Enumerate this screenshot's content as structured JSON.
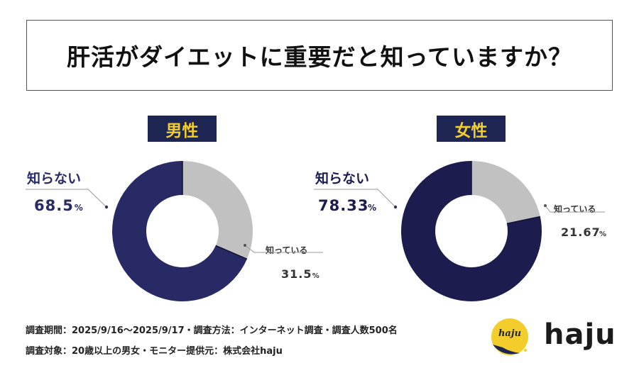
{
  "title": "肝活がダイエットに重要だと知っていますか？",
  "chart_data": [
    {
      "type": "pie",
      "title": "男性",
      "categories": [
        "知らない",
        "知っている"
      ],
      "values": [
        68.5,
        31.5
      ],
      "unit": "%",
      "colors": [
        "#272a64",
        "#c1c1c1"
      ],
      "labels": [
        {
          "name": "知らない",
          "value": "68.5",
          "unit": "%"
        },
        {
          "name": "知っている",
          "value": "31.5",
          "unit": "%"
        }
      ]
    },
    {
      "type": "pie",
      "title": "女性",
      "categories": [
        "知らない",
        "知っている"
      ],
      "values": [
        78.33,
        21.67
      ],
      "unit": "%",
      "colors": [
        "#1c1c4e",
        "#c1c1c1"
      ],
      "labels": [
        {
          "name": "知らない",
          "value": "78.33",
          "unit": "%"
        },
        {
          "name": "知っている",
          "value": "21.67",
          "unit": "%"
        }
      ]
    }
  ],
  "footer": {
    "line1": "調査期間：2025/9/16～2025/9/17・調査方法：インターネット調査・調査人数500名",
    "line2": "調査対象：20歳以上の男女・モニター提供元：株式会社haju"
  },
  "logo": {
    "text": "haju",
    "mark_text": "haju",
    "mark_color": "#f3cd2b",
    "dark_color": "#1d2552"
  }
}
